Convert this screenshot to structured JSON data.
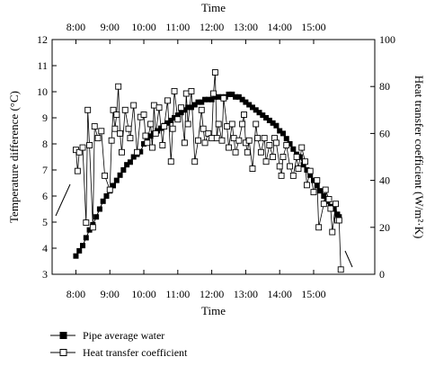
{
  "chart_data": {
    "type": "scatter",
    "xlabel_top": "Time",
    "xlabel_bottom": "Time",
    "ylabel_left": "Temperature difference (°C)",
    "ylabel_right": "Heat transfer coefficient (W/m²·K)",
    "x_ticks": [
      "8:00",
      "9:00",
      "10:00",
      "11:00",
      "12:00",
      "13:00",
      "14:00",
      "15:00"
    ],
    "x_tick_hours": [
      8,
      9,
      10,
      11,
      12,
      13,
      14,
      15
    ],
    "xlim_hours": [
      7.3,
      16.8
    ],
    "ylim_left": [
      3,
      12
    ],
    "yticks_left": [
      3,
      4,
      5,
      6,
      7,
      8,
      9,
      10,
      11,
      12
    ],
    "ylim_right": [
      0,
      100
    ],
    "yticks_right": [
      0,
      20,
      40,
      60,
      80,
      100
    ],
    "series": [
      {
        "name": "Pipe average water",
        "axis": "left",
        "marker": "filled-square",
        "points": [
          [
            8.0,
            3.7
          ],
          [
            8.1,
            3.9
          ],
          [
            8.2,
            4.1
          ],
          [
            8.3,
            4.4
          ],
          [
            8.4,
            4.7
          ],
          [
            8.5,
            4.9
          ],
          [
            8.6,
            5.2
          ],
          [
            8.7,
            5.5
          ],
          [
            8.8,
            5.8
          ],
          [
            8.9,
            6.0
          ],
          [
            9.0,
            6.2
          ],
          [
            9.1,
            6.4
          ],
          [
            9.2,
            6.6
          ],
          [
            9.3,
            6.8
          ],
          [
            9.4,
            7.0
          ],
          [
            9.5,
            7.2
          ],
          [
            9.6,
            7.3
          ],
          [
            9.7,
            7.5
          ],
          [
            9.8,
            7.6
          ],
          [
            9.9,
            7.7
          ],
          [
            10.0,
            8.0
          ],
          [
            10.1,
            8.1
          ],
          [
            10.2,
            8.3
          ],
          [
            10.3,
            8.4
          ],
          [
            10.4,
            8.5
          ],
          [
            10.5,
            8.6
          ],
          [
            10.6,
            8.7
          ],
          [
            10.7,
            8.8
          ],
          [
            10.8,
            8.9
          ],
          [
            10.9,
            9.0
          ],
          [
            11.0,
            9.1
          ],
          [
            11.1,
            9.2
          ],
          [
            11.2,
            9.3
          ],
          [
            11.3,
            9.4
          ],
          [
            11.4,
            9.4
          ],
          [
            11.5,
            9.5
          ],
          [
            11.6,
            9.6
          ],
          [
            11.7,
            9.6
          ],
          [
            11.8,
            9.7
          ],
          [
            11.9,
            9.7
          ],
          [
            12.0,
            9.7
          ],
          [
            12.1,
            9.8
          ],
          [
            12.2,
            9.8
          ],
          [
            12.3,
            9.8
          ],
          [
            12.4,
            9.8
          ],
          [
            12.5,
            9.9
          ],
          [
            12.6,
            9.9
          ],
          [
            12.7,
            9.8
          ],
          [
            12.8,
            9.8
          ],
          [
            12.9,
            9.7
          ],
          [
            13.0,
            9.6
          ],
          [
            13.1,
            9.5
          ],
          [
            13.2,
            9.4
          ],
          [
            13.3,
            9.3
          ],
          [
            13.4,
            9.2
          ],
          [
            13.5,
            9.1
          ],
          [
            13.6,
            9.0
          ],
          [
            13.7,
            8.9
          ],
          [
            13.8,
            8.8
          ],
          [
            13.9,
            8.7
          ],
          [
            14.0,
            8.5
          ],
          [
            14.1,
            8.4
          ],
          [
            14.2,
            8.2
          ],
          [
            14.3,
            8.0
          ],
          [
            14.4,
            7.8
          ],
          [
            14.5,
            7.6
          ],
          [
            14.6,
            7.5
          ],
          [
            14.7,
            7.2
          ],
          [
            14.8,
            7.0
          ],
          [
            14.9,
            6.8
          ],
          [
            15.0,
            6.6
          ],
          [
            15.1,
            6.4
          ],
          [
            15.2,
            6.2
          ],
          [
            15.3,
            6.0
          ],
          [
            15.4,
            5.8
          ],
          [
            15.5,
            5.6
          ],
          [
            15.6,
            5.5
          ],
          [
            15.7,
            5.3
          ],
          [
            15.75,
            5.2
          ]
        ]
      },
      {
        "name": "Heat transfer coefficient",
        "axis": "right",
        "marker": "open-square",
        "points": [
          [
            8.0,
            53
          ],
          [
            8.05,
            44
          ],
          [
            8.1,
            52
          ],
          [
            8.2,
            54
          ],
          [
            8.3,
            22
          ],
          [
            8.35,
            70
          ],
          [
            8.4,
            55
          ],
          [
            8.5,
            20
          ],
          [
            8.55,
            63
          ],
          [
            8.65,
            58
          ],
          [
            8.75,
            61
          ],
          [
            8.85,
            42
          ],
          [
            9.0,
            36
          ],
          [
            9.05,
            57
          ],
          [
            9.1,
            70
          ],
          [
            9.15,
            62
          ],
          [
            9.2,
            68
          ],
          [
            9.25,
            80
          ],
          [
            9.3,
            60
          ],
          [
            9.35,
            52
          ],
          [
            9.45,
            70
          ],
          [
            9.55,
            62
          ],
          [
            9.6,
            58
          ],
          [
            9.7,
            72
          ],
          [
            9.8,
            52
          ],
          [
            9.9,
            67
          ],
          [
            10.0,
            68
          ],
          [
            10.05,
            59
          ],
          [
            10.1,
            56
          ],
          [
            10.2,
            64
          ],
          [
            10.25,
            54
          ],
          [
            10.3,
            72
          ],
          [
            10.35,
            60
          ],
          [
            10.45,
            71
          ],
          [
            10.55,
            55
          ],
          [
            10.6,
            63
          ],
          [
            10.7,
            74
          ],
          [
            10.8,
            48
          ],
          [
            10.85,
            62
          ],
          [
            10.9,
            78
          ],
          [
            11.0,
            66
          ],
          [
            11.1,
            71
          ],
          [
            11.2,
            56
          ],
          [
            11.25,
            77
          ],
          [
            11.3,
            64
          ],
          [
            11.4,
            78
          ],
          [
            11.5,
            48
          ],
          [
            11.6,
            57
          ],
          [
            11.7,
            70
          ],
          [
            11.75,
            62
          ],
          [
            11.8,
            56
          ],
          [
            11.9,
            60
          ],
          [
            12.0,
            58
          ],
          [
            12.05,
            77
          ],
          [
            12.1,
            86
          ],
          [
            12.15,
            58
          ],
          [
            12.2,
            64
          ],
          [
            12.3,
            57
          ],
          [
            12.35,
            75
          ],
          [
            12.45,
            63
          ],
          [
            12.5,
            54
          ],
          [
            12.6,
            64
          ],
          [
            12.65,
            58
          ],
          [
            12.7,
            52
          ],
          [
            12.8,
            57
          ],
          [
            12.9,
            64
          ],
          [
            12.95,
            68
          ],
          [
            13.0,
            56
          ],
          [
            13.05,
            52
          ],
          [
            13.1,
            57
          ],
          [
            13.2,
            45
          ],
          [
            13.3,
            64
          ],
          [
            13.35,
            58
          ],
          [
            13.45,
            52
          ],
          [
            13.55,
            58
          ],
          [
            13.6,
            48
          ],
          [
            13.7,
            55
          ],
          [
            13.8,
            50
          ],
          [
            13.85,
            58
          ],
          [
            13.9,
            56
          ],
          [
            14.0,
            46
          ],
          [
            14.05,
            42
          ],
          [
            14.1,
            50
          ],
          [
            14.2,
            55
          ],
          [
            14.3,
            46
          ],
          [
            14.4,
            42
          ],
          [
            14.5,
            50
          ],
          [
            14.55,
            45
          ],
          [
            14.65,
            54
          ],
          [
            14.75,
            48
          ],
          [
            14.8,
            38
          ],
          [
            14.9,
            44
          ],
          [
            15.0,
            35
          ],
          [
            15.1,
            40
          ],
          [
            15.15,
            20
          ],
          [
            15.3,
            30
          ],
          [
            15.35,
            36
          ],
          [
            15.45,
            32
          ],
          [
            15.5,
            28
          ],
          [
            15.55,
            18
          ],
          [
            15.65,
            30
          ],
          [
            15.7,
            23
          ],
          [
            15.75,
            23
          ],
          [
            15.8,
            2
          ]
        ]
      }
    ],
    "legend": {
      "position": "bottom-left",
      "entries": [
        "Pipe average water",
        "Heat transfer coefficient"
      ]
    },
    "colors": {
      "marks": "#000000",
      "background": "#ffffff"
    }
  }
}
